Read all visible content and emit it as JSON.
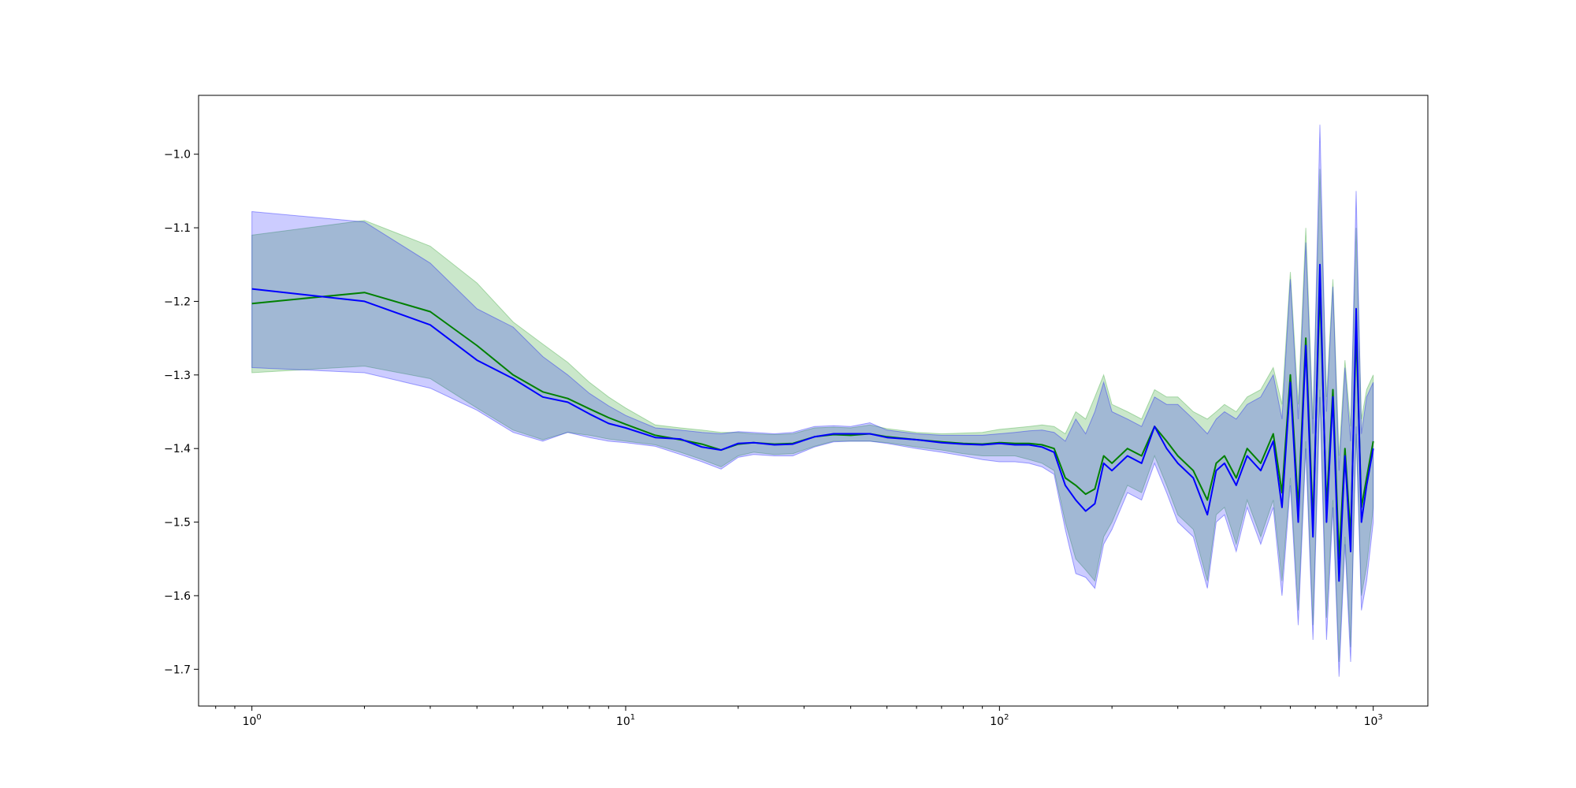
{
  "chart_data": {
    "type": "line",
    "title": "",
    "xlabel": "",
    "ylabel": "",
    "xscale": "log",
    "xlim": [
      0.72,
      1400
    ],
    "ylim": [
      -1.75,
      -0.92
    ],
    "grid": false,
    "legend": "none",
    "x_ticks": [
      {
        "value": 1,
        "base": "10",
        "exp": "0"
      },
      {
        "value": 10,
        "base": "10",
        "exp": "1"
      },
      {
        "value": 100,
        "base": "10",
        "exp": "2"
      },
      {
        "value": 1000,
        "base": "10",
        "exp": "3"
      }
    ],
    "y_ticks": [
      {
        "value": -1.0,
        "label": "−1.0"
      },
      {
        "value": -1.1,
        "label": "−1.1"
      },
      {
        "value": -1.2,
        "label": "−1.2"
      },
      {
        "value": -1.3,
        "label": "−1.3"
      },
      {
        "value": -1.4,
        "label": "−1.4"
      },
      {
        "value": -1.5,
        "label": "−1.5"
      },
      {
        "value": -1.6,
        "label": "−1.6"
      },
      {
        "value": -1.7,
        "label": "−1.7"
      }
    ],
    "series": [
      {
        "color": "#008000",
        "band_color": "#2ca02c",
        "band_opacity": 0.25,
        "x": [
          1,
          2,
          3,
          4,
          5,
          6,
          7,
          8,
          9,
          10,
          12,
          14,
          16,
          18,
          20,
          22,
          25,
          28,
          32,
          36,
          40,
          45,
          50,
          60,
          70,
          80,
          90,
          100,
          110,
          120,
          130,
          140,
          150,
          160,
          170,
          180,
          190,
          200,
          220,
          240,
          260,
          280,
          300,
          330,
          360,
          380,
          400,
          430,
          460,
          500,
          540,
          570,
          600,
          630,
          660,
          690,
          720,
          750,
          780,
          810,
          840,
          870,
          900,
          930,
          960,
          1000
        ],
        "y": [
          -1.203,
          -1.188,
          -1.214,
          -1.26,
          -1.3,
          -1.323,
          -1.332,
          -1.346,
          -1.358,
          -1.367,
          -1.382,
          -1.388,
          -1.394,
          -1.402,
          -1.394,
          -1.392,
          -1.394,
          -1.393,
          -1.384,
          -1.381,
          -1.382,
          -1.38,
          -1.384,
          -1.388,
          -1.391,
          -1.393,
          -1.394,
          -1.392,
          -1.393,
          -1.393,
          -1.395,
          -1.4,
          -1.44,
          -1.45,
          -1.462,
          -1.455,
          -1.41,
          -1.42,
          -1.4,
          -1.41,
          -1.37,
          -1.39,
          -1.41,
          -1.43,
          -1.47,
          -1.42,
          -1.41,
          -1.44,
          -1.4,
          -1.42,
          -1.38,
          -1.46,
          -1.3,
          -1.48,
          -1.25,
          -1.5,
          -1.18,
          -1.48,
          -1.32,
          -1.55,
          -1.4,
          -1.52,
          -1.24,
          -1.48,
          -1.44,
          -1.39
        ],
        "lower": [
          -1.297,
          -1.288,
          -1.305,
          -1.345,
          -1.375,
          -1.388,
          -1.378,
          -1.382,
          -1.387,
          -1.39,
          -1.395,
          -1.405,
          -1.415,
          -1.425,
          -1.41,
          -1.405,
          -1.408,
          -1.407,
          -1.397,
          -1.39,
          -1.39,
          -1.39,
          -1.392,
          -1.398,
          -1.402,
          -1.407,
          -1.41,
          -1.41,
          -1.41,
          -1.415,
          -1.42,
          -1.43,
          -1.5,
          -1.55,
          -1.565,
          -1.58,
          -1.52,
          -1.5,
          -1.45,
          -1.46,
          -1.41,
          -1.45,
          -1.49,
          -1.51,
          -1.58,
          -1.49,
          -1.48,
          -1.53,
          -1.47,
          -1.52,
          -1.47,
          -1.58,
          -1.44,
          -1.62,
          -1.39,
          -1.64,
          -1.32,
          -1.63,
          -1.47,
          -1.69,
          -1.52,
          -1.67,
          -1.38,
          -1.6,
          -1.56,
          -1.48
        ],
        "upper": [
          -1.11,
          -1.09,
          -1.125,
          -1.175,
          -1.228,
          -1.258,
          -1.283,
          -1.31,
          -1.33,
          -1.345,
          -1.368,
          -1.372,
          -1.375,
          -1.378,
          -1.378,
          -1.38,
          -1.381,
          -1.38,
          -1.372,
          -1.371,
          -1.372,
          -1.368,
          -1.373,
          -1.378,
          -1.38,
          -1.379,
          -1.378,
          -1.374,
          -1.372,
          -1.37,
          -1.368,
          -1.37,
          -1.38,
          -1.35,
          -1.36,
          -1.33,
          -1.3,
          -1.34,
          -1.35,
          -1.36,
          -1.32,
          -1.33,
          -1.33,
          -1.35,
          -1.36,
          -1.35,
          -1.34,
          -1.35,
          -1.33,
          -1.32,
          -1.29,
          -1.34,
          -1.16,
          -1.34,
          -1.1,
          -1.36,
          -1.02,
          -1.33,
          -1.17,
          -1.41,
          -1.28,
          -1.37,
          -1.1,
          -1.36,
          -1.32,
          -1.3
        ]
      },
      {
        "color": "#0000ff",
        "band_color": "#0000ff",
        "band_opacity": 0.2,
        "x": [
          1,
          2,
          3,
          4,
          5,
          6,
          7,
          8,
          9,
          10,
          12,
          14,
          16,
          18,
          20,
          22,
          25,
          28,
          32,
          36,
          40,
          45,
          50,
          60,
          70,
          80,
          90,
          100,
          110,
          120,
          130,
          140,
          150,
          160,
          170,
          180,
          190,
          200,
          220,
          240,
          260,
          280,
          300,
          330,
          360,
          380,
          400,
          430,
          460,
          500,
          540,
          570,
          600,
          630,
          660,
          690,
          720,
          750,
          780,
          810,
          840,
          870,
          900,
          930,
          960,
          1000
        ],
        "y": [
          -1.183,
          -1.2,
          -1.232,
          -1.28,
          -1.305,
          -1.33,
          -1.337,
          -1.353,
          -1.366,
          -1.372,
          -1.385,
          -1.387,
          -1.398,
          -1.402,
          -1.393,
          -1.392,
          -1.395,
          -1.394,
          -1.384,
          -1.38,
          -1.38,
          -1.38,
          -1.385,
          -1.388,
          -1.392,
          -1.394,
          -1.395,
          -1.393,
          -1.395,
          -1.395,
          -1.398,
          -1.405,
          -1.45,
          -1.47,
          -1.485,
          -1.475,
          -1.42,
          -1.43,
          -1.41,
          -1.42,
          -1.37,
          -1.4,
          -1.42,
          -1.44,
          -1.49,
          -1.43,
          -1.42,
          -1.45,
          -1.41,
          -1.43,
          -1.39,
          -1.48,
          -1.31,
          -1.5,
          -1.26,
          -1.52,
          -1.15,
          -1.5,
          -1.33,
          -1.58,
          -1.41,
          -1.54,
          -1.21,
          -1.5,
          -1.45,
          -1.4
        ],
        "lower": [
          -1.29,
          -1.297,
          -1.318,
          -1.348,
          -1.378,
          -1.39,
          -1.378,
          -1.385,
          -1.39,
          -1.392,
          -1.397,
          -1.408,
          -1.418,
          -1.428,
          -1.412,
          -1.408,
          -1.41,
          -1.41,
          -1.398,
          -1.391,
          -1.39,
          -1.39,
          -1.393,
          -1.4,
          -1.405,
          -1.41,
          -1.415,
          -1.418,
          -1.418,
          -1.42,
          -1.425,
          -1.435,
          -1.51,
          -1.57,
          -1.575,
          -1.59,
          -1.53,
          -1.51,
          -1.46,
          -1.47,
          -1.42,
          -1.46,
          -1.5,
          -1.52,
          -1.59,
          -1.5,
          -1.49,
          -1.54,
          -1.48,
          -1.53,
          -1.48,
          -1.6,
          -1.45,
          -1.64,
          -1.4,
          -1.66,
          -1.33,
          -1.66,
          -1.48,
          -1.71,
          -1.53,
          -1.69,
          -1.37,
          -1.62,
          -1.58,
          -1.5
        ],
        "upper": [
          -1.078,
          -1.092,
          -1.148,
          -1.21,
          -1.235,
          -1.275,
          -1.3,
          -1.325,
          -1.342,
          -1.355,
          -1.372,
          -1.375,
          -1.378,
          -1.38,
          -1.377,
          -1.378,
          -1.38,
          -1.378,
          -1.37,
          -1.369,
          -1.37,
          -1.365,
          -1.375,
          -1.38,
          -1.382,
          -1.382,
          -1.382,
          -1.38,
          -1.378,
          -1.376,
          -1.375,
          -1.378,
          -1.39,
          -1.36,
          -1.38,
          -1.35,
          -1.31,
          -1.35,
          -1.36,
          -1.37,
          -1.33,
          -1.34,
          -1.34,
          -1.36,
          -1.38,
          -1.36,
          -1.35,
          -1.36,
          -1.34,
          -1.33,
          -1.3,
          -1.36,
          -1.17,
          -1.36,
          -1.12,
          -1.38,
          -0.96,
          -1.35,
          -1.18,
          -1.43,
          -1.29,
          -1.39,
          -1.05,
          -1.38,
          -1.33,
          -1.31
        ]
      }
    ]
  }
}
